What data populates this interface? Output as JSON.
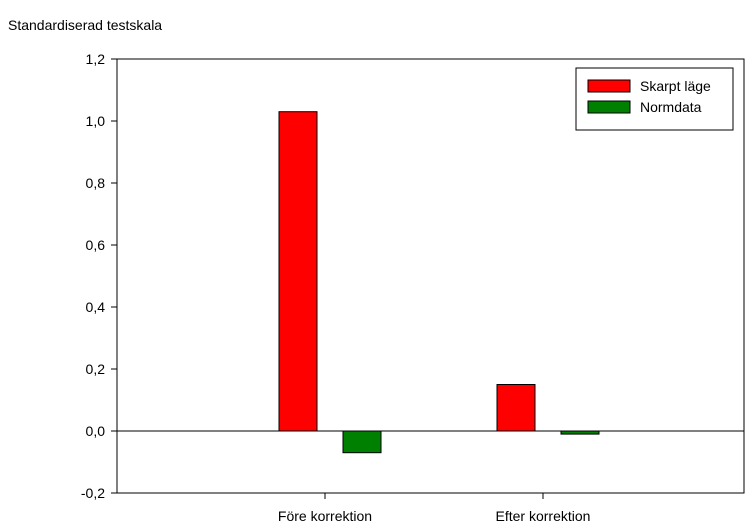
{
  "chart_data": {
    "type": "bar",
    "ylabel": "Standardiserad testskala",
    "categories": [
      "Före korrektion",
      "Efter korrektion"
    ],
    "series": [
      {
        "name": "Skarpt läge",
        "color": "#ff0000",
        "values": [
          1.03,
          0.15
        ]
      },
      {
        "name": "Normdata",
        "color": "#008000",
        "values": [
          -0.07,
          -0.01
        ]
      }
    ],
    "ylim": [
      -0.2,
      1.2
    ],
    "yticks": [
      "-0,2",
      "0,0",
      "0,2",
      "0,4",
      "0,6",
      "0,8",
      "1,0",
      "1,2"
    ],
    "yticks_values": [
      -0.2,
      0,
      0.2,
      0.4,
      0.6,
      0.8,
      1.0,
      1.2
    ],
    "grid": false,
    "legend": "top-right"
  }
}
